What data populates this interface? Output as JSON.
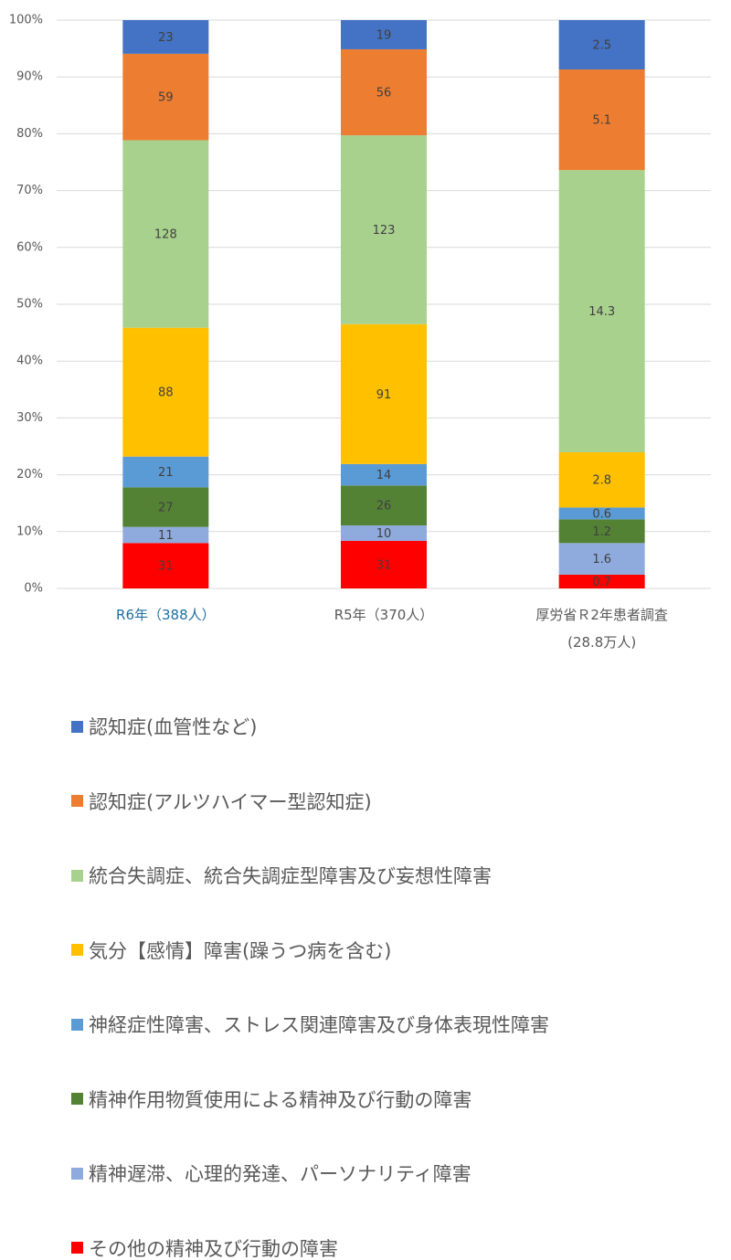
{
  "chart_data": {
    "type": "bar",
    "stacked": "percent",
    "categories": [
      "R6年（388人）",
      "R5年（370人）",
      "厚労省Ｒ2年患者調査\n(28.8万人)"
    ],
    "series": [
      {
        "name": "認知症(血管性など)",
        "color": "#4472c4",
        "values": [
          23,
          19,
          2.5
        ]
      },
      {
        "name": "認知症(アルツハイマー型認知症)",
        "color": "#ed7d31",
        "values": [
          59,
          56,
          5.1
        ]
      },
      {
        "name": "統合失調症、統合失調症型障害及び妄想性障害",
        "color": "#a9d18e",
        "values": [
          128,
          123,
          14.3
        ]
      },
      {
        "name": "気分【感情】障害(躁うつ病を含む)",
        "color": "#ffc000",
        "values": [
          88,
          91,
          2.8
        ]
      },
      {
        "name": "神経症性障害、ストレス関連障害及び身体表現性障害",
        "color": "#5b9bd5",
        "values": [
          21,
          14,
          0.6
        ]
      },
      {
        "name": "精神作用物質使用による精神及び行動の障害",
        "color": "#548235",
        "values": [
          27,
          26,
          1.2
        ]
      },
      {
        "name": "精神遅滞、心理的発達、パーソナリティ障害",
        "color": "#8faadc",
        "values": [
          11,
          10,
          1.6
        ]
      },
      {
        "name": "その他の精神及び行動の障害",
        "color": "#ff0000",
        "values": [
          31,
          31,
          0.7
        ]
      }
    ],
    "ylim": [
      0,
      100
    ],
    "yticks": [
      {
        "value": 0,
        "label": "0%"
      },
      {
        "value": 10,
        "label": "10%"
      },
      {
        "value": 20,
        "label": "20%"
      },
      {
        "value": 30,
        "label": "30%"
      },
      {
        "value": 40,
        "label": "40%"
      },
      {
        "value": 50,
        "label": "50%"
      },
      {
        "value": 60,
        "label": "60%"
      },
      {
        "value": 70,
        "label": "70%"
      },
      {
        "value": 80,
        "label": "80%"
      },
      {
        "value": 90,
        "label": "90%"
      },
      {
        "value": 100,
        "label": "100%"
      }
    ],
    "grid": true
  }
}
